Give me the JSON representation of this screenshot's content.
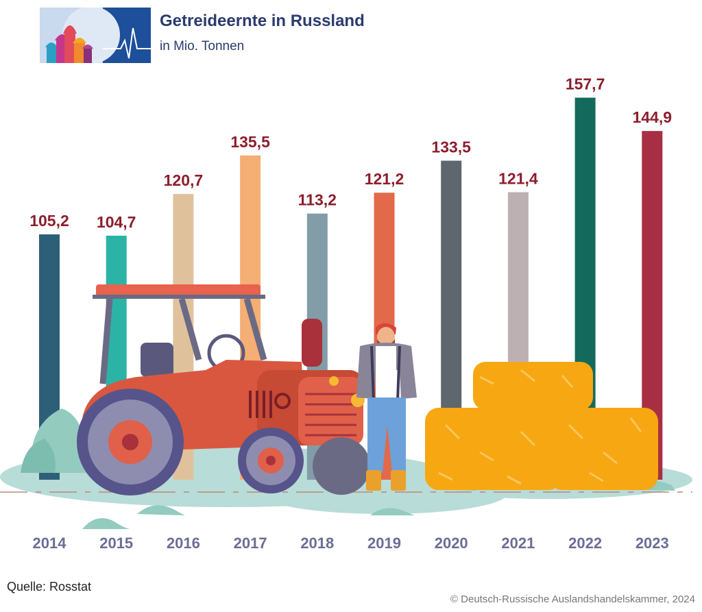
{
  "header": {
    "title": "Getreideernte in Russland",
    "subtitle": "in Mio. Tonnen"
  },
  "footer": {
    "source": "Quelle: Rosstat",
    "copyright": "© Deutsch-Russische Auslandshandelskammer, 2024"
  },
  "chart_data": {
    "type": "bar",
    "title": "Getreideernte in Russland",
    "subtitle": "in Mio. Tonnen",
    "xlabel": "",
    "ylabel": "Mio. Tonnen",
    "ylim": [
      0,
      160
    ],
    "grid": false,
    "categories": [
      "2014",
      "2015",
      "2016",
      "2017",
      "2018",
      "2019",
      "2020",
      "2021",
      "2022",
      "2023"
    ],
    "values": [
      105.2,
      104.7,
      120.7,
      135.5,
      113.2,
      121.2,
      133.5,
      121.4,
      157.7,
      144.9
    ],
    "value_labels": [
      "105,2",
      "104,7",
      "120,7",
      "135,5",
      "113,2",
      "121,2",
      "133,5",
      "121,4",
      "157,7",
      "144,9"
    ],
    "bar_colors": [
      "#2d5f78",
      "#2bb3a6",
      "#dfc29c",
      "#f5ae74",
      "#829da8",
      "#e2694a",
      "#5e676e",
      "#bdb0b2",
      "#136a5c",
      "#a82f43"
    ]
  },
  "colors": {
    "title": "#2a3b6e",
    "value_label": "#8c1e2c",
    "year_label": "#6b6d96"
  },
  "icons": {
    "logo": "kremlin-domes-heartbeat-logo",
    "illustration": "tractor-farmer-hay-bales"
  }
}
